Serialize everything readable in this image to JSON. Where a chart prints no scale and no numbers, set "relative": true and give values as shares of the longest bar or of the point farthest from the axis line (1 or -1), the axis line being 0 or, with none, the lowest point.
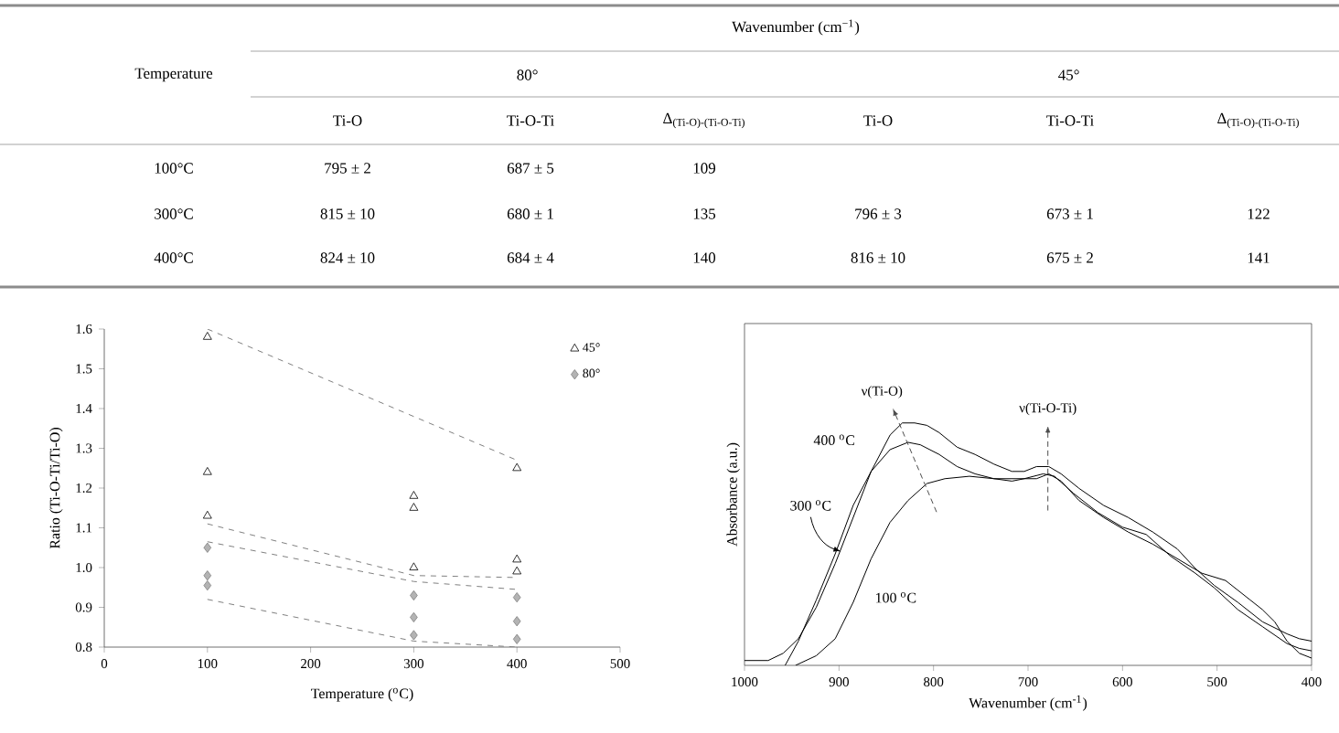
{
  "chart_data": [
    {
      "type": "other",
      "title": "Wavenumber (cm$^{−1}$)",
      "ylabel": "Temperature",
      "annotations": [
        "80°",
        "45°"
      ],
      "categories": [
        "Ti-O",
        "Ti-O-Ti",
        "Δ$_{(Ti-O)-(Ti-O-Ti)}$",
        "Ti-O",
        "Ti-O-Ti",
        "Δ$_{(Ti-O)-(Ti-O-Ti)}$"
      ],
      "y_categories": [
        "100°C",
        "300°C",
        "400°C"
      ],
      "cell_labels": [
        [
          "795 ± 2",
          "687 ± 5",
          "109",
          null,
          null,
          null
        ],
        [
          "815 ± 10",
          "680 ± 1",
          "135",
          "796 ± 3",
          "673 ± 1",
          "122"
        ],
        [
          "824 ± 10",
          "684 ± 4",
          "140",
          "816 ± 10",
          "675 ± 2",
          "141"
        ]
      ]
    },
    {
      "type": "scatter",
      "xlabel": "Temperature ($^{o}$C)",
      "ylabel": "Ratio (Ti-O-Ti/Ti-O)",
      "xlim": [
        0,
        500
      ],
      "xticks": [
        0,
        100,
        200,
        300,
        400,
        500
      ],
      "ylim": [
        0.8,
        1.6
      ],
      "yticks": [
        0.8,
        0.9,
        {
          "value": 1.0,
          "label": "1.0"
        },
        1.1,
        1.2,
        1.3,
        1.4,
        1.5,
        1.6
      ],
      "legend": "top right",
      "series": [
        {
          "name": "45°",
          "color": "#000000",
          "marker": "triangle",
          "x": [
            100,
            100,
            100,
            300,
            300,
            300,
            400,
            400,
            400
          ],
          "values": [
            1.58,
            1.24,
            1.13,
            1.18,
            1.15,
            1.0,
            1.25,
            1.02,
            0.99
          ]
        },
        {
          "name": "80°",
          "color": "#808080",
          "marker": "diamond",
          "x": [
            100,
            100,
            100,
            300,
            300,
            300,
            400,
            400,
            400
          ],
          "values": [
            1.05,
            0.98,
            0.955,
            0.93,
            0.875,
            0.83,
            0.925,
            0.865,
            0.82
          ]
        },
        {
          "type": "line",
          "color": "#808080",
          "line_style": "dashed",
          "x": [
            100,
            400
          ],
          "values": [
            1.6,
            1.27
          ]
        },
        {
          "type": "line",
          "color": "#808080",
          "line_style": "dashed",
          "x": [
            100,
            300,
            400
          ],
          "values": [
            1.11,
            0.98,
            0.975
          ]
        },
        {
          "type": "line",
          "color": "#808080",
          "line_style": "dashed",
          "x": [
            100,
            300,
            400
          ],
          "values": [
            1.065,
            0.965,
            0.945
          ]
        },
        {
          "type": "line",
          "color": "#808080",
          "line_style": "dashed",
          "x": [
            100,
            300,
            400
          ],
          "values": [
            0.92,
            0.815,
            0.8
          ]
        }
      ]
    },
    {
      "type": "line",
      "relative": true,
      "xlabel": "Wavenumber (cm$^{-1}$)",
      "ylabel": "Absorbance (a.u.)",
      "xlim": [
        1000,
        400
      ],
      "xticks": [
        1000,
        900,
        800,
        700,
        600,
        500,
        400
      ],
      "annotations": [
        "ν(Ti-O)",
        "ν(Ti-O-Ti)"
      ],
      "series": [
        {
          "name": "400 $^{o}$C",
          "color": "#000000",
          "x": [
            1000,
            975,
            959,
            943,
            924,
            904,
            885,
            866,
            846,
            833,
            820,
            807,
            794,
            775,
            756,
            736,
            717,
            704,
            691,
            678,
            665,
            646,
            620,
            594,
            568,
            542,
            523,
            503,
            478,
            452,
            426,
            413,
            400
          ],
          "values": [
            0.02,
            0.02,
            0.05,
            0.11,
            0.24,
            0.42,
            0.61,
            0.8,
            0.95,
            1.0,
            1.0,
            0.99,
            0.96,
            0.9,
            0.87,
            0.83,
            0.8,
            0.8,
            0.82,
            0.82,
            0.79,
            0.73,
            0.66,
            0.61,
            0.55,
            0.48,
            0.4,
            0.33,
            0.26,
            0.18,
            0.13,
            0.11,
            0.1
          ]
        },
        {
          "name": "300 $^{o}$C",
          "color": "#000000",
          "x": [
            957,
            943,
            924,
            904,
            885,
            866,
            846,
            827,
            814,
            794,
            775,
            756,
            736,
            717,
            704,
            684,
            672,
            652,
            626,
            600,
            575,
            549,
            523,
            503,
            478,
            452,
            426,
            413,
            400
          ],
          "values": [
            0.0,
            0.1,
            0.27,
            0.46,
            0.66,
            0.8,
            0.89,
            0.92,
            0.91,
            0.87,
            0.82,
            0.79,
            0.77,
            0.76,
            0.77,
            0.79,
            0.78,
            0.71,
            0.63,
            0.57,
            0.54,
            0.45,
            0.38,
            0.32,
            0.23,
            0.16,
            0.09,
            0.07,
            0.06
          ]
        },
        {
          "name": "100 $^{o}$C",
          "color": "#000000",
          "x": [
            946,
            924,
            904,
            885,
            866,
            846,
            827,
            807,
            788,
            762,
            736,
            710,
            691,
            678,
            665,
            646,
            620,
            594,
            568,
            542,
            516,
            491,
            465,
            452,
            439,
            426,
            413,
            400
          ],
          "values": [
            0.0,
            0.04,
            0.11,
            0.26,
            0.44,
            0.59,
            0.68,
            0.75,
            0.77,
            0.78,
            0.77,
            0.77,
            0.77,
            0.79,
            0.76,
            0.68,
            0.61,
            0.55,
            0.5,
            0.44,
            0.38,
            0.35,
            0.27,
            0.23,
            0.18,
            0.1,
            0.05,
            0.03
          ]
        }
      ]
    }
  ]
}
